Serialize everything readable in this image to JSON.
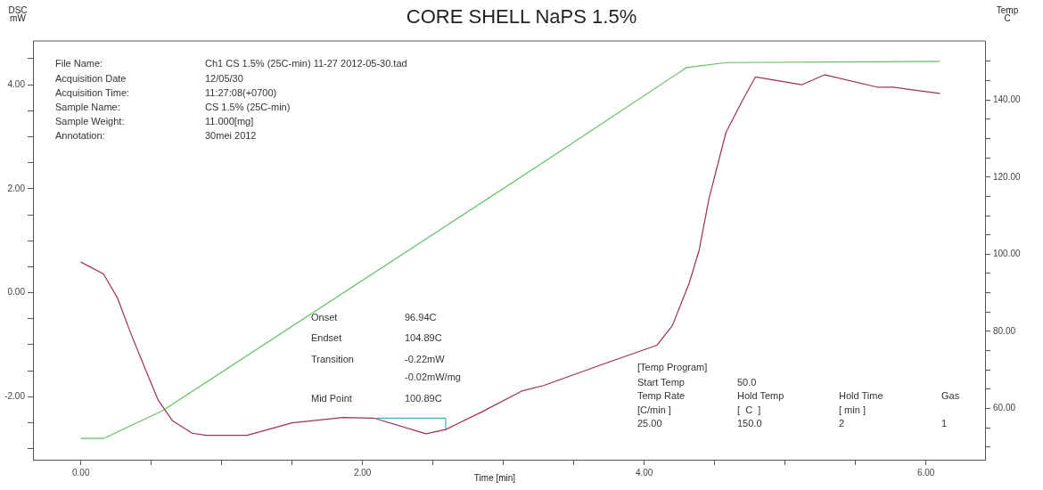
{
  "chart_data": {
    "type": "line",
    "title": "CORE SHELL NaPS 1.5%",
    "xlabel": "Time [min]",
    "ylabel": "DSC mW",
    "y2label": "Temp C",
    "xlim": [
      -0.34,
      6.42
    ],
    "ylim": [
      -3.21,
      4.84
    ],
    "y2lim": [
      46.7,
      155.3
    ],
    "xticks": [
      {
        "value": 0,
        "label": "0.00"
      },
      {
        "value": 0.5,
        "label": null
      },
      {
        "value": 1,
        "label": null
      },
      {
        "value": 1.5,
        "label": null
      },
      {
        "value": 2,
        "label": "2.00"
      },
      {
        "value": 2.5,
        "label": null
      },
      {
        "value": 3,
        "label": null
      },
      {
        "value": 3.5,
        "label": null
      },
      {
        "value": 4,
        "label": "4.00"
      },
      {
        "value": 4.5,
        "label": null
      },
      {
        "value": 5,
        "label": null
      },
      {
        "value": 5.5,
        "label": null
      },
      {
        "value": 6,
        "label": "6.00"
      }
    ],
    "yticks": [
      {
        "value": -3,
        "label": null
      },
      {
        "value": -2.5,
        "label": null
      },
      {
        "value": -2,
        "label": "-2.00"
      },
      {
        "value": -1.5,
        "label": null
      },
      {
        "value": -1,
        "label": null
      },
      {
        "value": -0.5,
        "label": null
      },
      {
        "value": 0,
        "label": "0.00"
      },
      {
        "value": 0.5,
        "label": null
      },
      {
        "value": 1,
        "label": null
      },
      {
        "value": 1.5,
        "label": null
      },
      {
        "value": 2,
        "label": "2.00"
      },
      {
        "value": 2.5,
        "label": null
      },
      {
        "value": 3,
        "label": null
      },
      {
        "value": 3.5,
        "label": null
      },
      {
        "value": 4,
        "label": "4.00"
      },
      {
        "value": 4.5,
        "label": null
      }
    ],
    "y2ticks": [
      {
        "value": 50,
        "label": null
      },
      {
        "value": 55,
        "label": null
      },
      {
        "value": 60,
        "label": "60.00"
      },
      {
        "value": 65,
        "label": null
      },
      {
        "value": 70,
        "label": null
      },
      {
        "value": 75,
        "label": null
      },
      {
        "value": 80,
        "label": "80.00"
      },
      {
        "value": 85,
        "label": null
      },
      {
        "value": 90,
        "label": null
      },
      {
        "value": 95,
        "label": null
      },
      {
        "value": 100,
        "label": "100.00"
      },
      {
        "value": 105,
        "label": null
      },
      {
        "value": 110,
        "label": null
      },
      {
        "value": 115,
        "label": null
      },
      {
        "value": 120,
        "label": "120.00"
      },
      {
        "value": 125,
        "label": null
      },
      {
        "value": 130,
        "label": null
      },
      {
        "value": 135,
        "label": null
      },
      {
        "value": 140,
        "label": "140.00"
      },
      {
        "value": 145,
        "label": null
      },
      {
        "value": 150,
        "label": null
      }
    ],
    "series": [
      {
        "color": "#a03050",
        "x": [
          0,
          0.16,
          0.26,
          0.35,
          0.45,
          0.55,
          0.65,
          0.79,
          0.89,
          1.18,
          1.5,
          1.86,
          2.08,
          2.45,
          2.59,
          2.84,
          3.13,
          3.29,
          3.69,
          4.09,
          4.2,
          4.32,
          4.39,
          4.46,
          4.58,
          4.7,
          4.79,
          5.12,
          5.28,
          5.66,
          5.77,
          6.1
        ],
        "values": [
          0.59,
          0.36,
          -0.1,
          -0.75,
          -1.42,
          -2.07,
          -2.46,
          -2.7,
          -2.74,
          -2.74,
          -2.5,
          -2.4,
          -2.41,
          -2.71,
          -2.63,
          -2.3,
          -1.89,
          -1.78,
          -1.39,
          -1.01,
          -0.63,
          0.19,
          0.82,
          1.81,
          3.08,
          3.71,
          4.15,
          4.0,
          4.19,
          3.95,
          3.95,
          3.83
        ]
      },
      {
        "color": "#60c060",
        "axis": "y2",
        "x": [
          0,
          0.16,
          0.58,
          3.25,
          4.3,
          4.58,
          6.1
        ],
        "values": [
          52.2,
          52.2,
          59.4,
          123,
          148.4,
          149.7,
          150
        ]
      },
      {
        "color": "#40b0c0",
        "x": [
          2.1,
          2.59,
          2.59
        ],
        "values": [
          -2.41,
          -2.41,
          -2.63
        ]
      }
    ],
    "annotations": [
      "File Name:",
      "Ch1 CS 1.5% (25C-min) 11-27 2012-05-30.tad",
      "Acquisition Date",
      "12/05/30",
      "Acquisition Time:",
      "11:27:08(+0700)",
      "Sample Name:",
      "CS 1.5% (25C-min)",
      "Sample Weight:",
      "11.000[mg]",
      "Annotation:",
      "30mei 2012",
      "Onset",
      "96.94C",
      "Endset",
      "104.89C",
      "Transition",
      "-0.22mW",
      "-0.02mW/mg",
      "Mid Point",
      "100.89C",
      "[Temp Program]",
      "Start Temp",
      "50.0",
      "Temp Rate",
      "Hold Temp",
      "Hold Time",
      "Gas",
      "[C/min ]",
      "[  C  ]",
      "[ min ]",
      "25.00",
      "150.0",
      "2",
      "1"
    ]
  }
}
